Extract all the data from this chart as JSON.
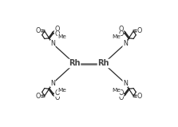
{
  "background_color": "#ffffff",
  "line_color": "#2a2a2a",
  "rh_color": "#444444",
  "fig_width": 2.23,
  "fig_height": 1.59,
  "dpi": 100,
  "rh1": [
    0.385,
    0.5
  ],
  "rh2": [
    0.615,
    0.5
  ],
  "font_size_rh": 7.0,
  "font_size_atom": 5.8,
  "lw": 0.9,
  "lw_rh": 1.8
}
